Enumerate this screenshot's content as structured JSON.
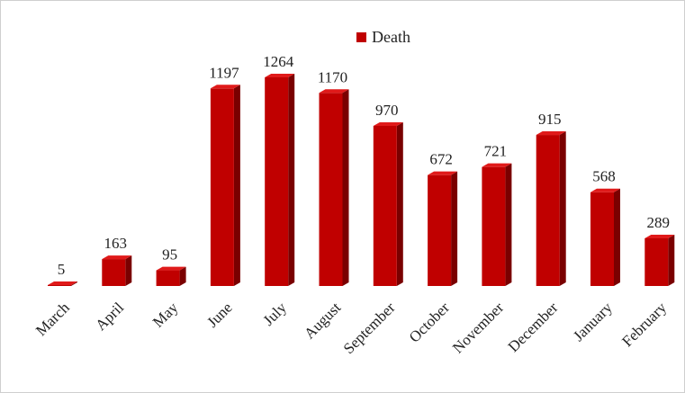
{
  "chart_data": {
    "type": "bar",
    "categories": [
      "March",
      "April",
      "May",
      "June",
      "July",
      "August",
      "September",
      "October",
      "November",
      "December",
      "January",
      "February"
    ],
    "series": [
      {
        "name": "Death",
        "values": [
          5,
          163,
          95,
          1197,
          1264,
          1170,
          970,
          672,
          721,
          915,
          568,
          289
        ],
        "color": "#c00000"
      }
    ],
    "legend_position": "top",
    "grid": false,
    "ylim": [
      0,
      1350
    ],
    "style": "3d-column"
  }
}
